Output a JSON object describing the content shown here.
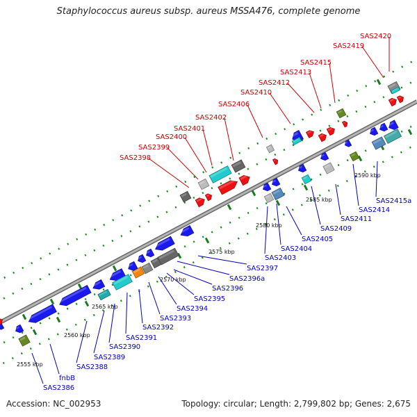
{
  "title": "Staphylococcus aureus subsp. aureus MSSA476, complete genome",
  "footer": {
    "accession": "Accession: NC_002953",
    "summary": "Topology: circular; Length: 2,799,802 bp; Genes: 2,675"
  },
  "colors": {
    "forward_label": "#cc0000",
    "reverse_label": "#0000bb",
    "backbone": "#8a8a8a",
    "tick": "#1a8a1a"
  },
  "ticks": [
    "2555 kbp",
    "2560 kbp",
    "2565 kbp",
    "2570 kbp",
    "2575 kbp",
    "2580 kbp",
    "2585 kbp",
    "2590 kbp"
  ],
  "forward_labels": [
    "SAS2398",
    "SAS2399",
    "SAS2400",
    "SAS2401",
    "SAS2402",
    "SAS2406",
    "SAS2410",
    "SAS2412",
    "SAS2413",
    "SAS2415",
    "SAS2419",
    "SAS2420"
  ],
  "reverse_labels": [
    "SAS2386",
    "fnbB",
    "SAS2388",
    "SAS2389",
    "SAS2390",
    "SAS2391",
    "SAS2392",
    "SAS2393",
    "SAS2394",
    "SAS2395",
    "SAS2396",
    "SAS2396a",
    "SAS2397",
    "SAS2403",
    "SAS2404",
    "SAS2405",
    "SAS2409",
    "SAS2411",
    "SAS2414",
    "SAS2415a"
  ]
}
